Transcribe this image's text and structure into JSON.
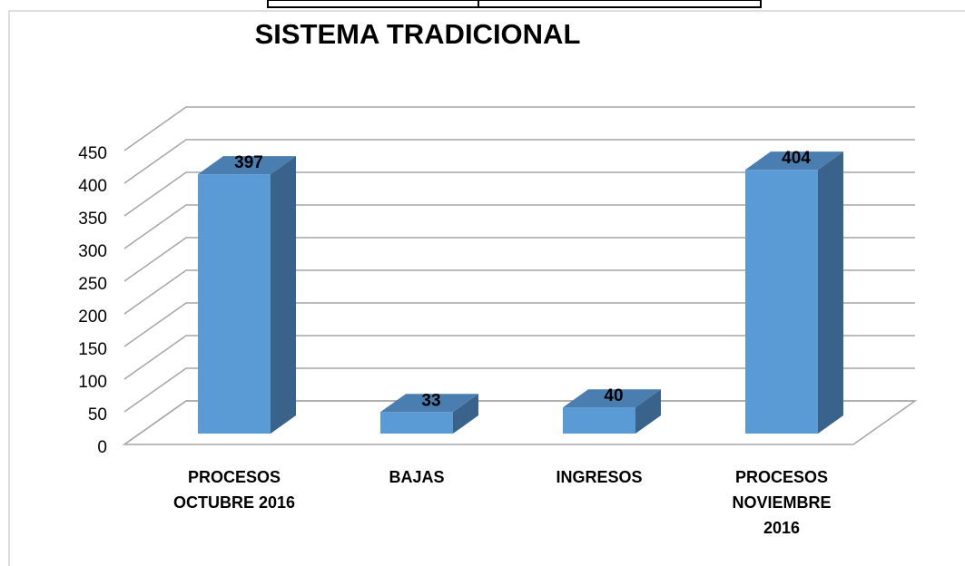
{
  "chart_data": {
    "type": "bar3d",
    "title": "SISTEMA TRADICIONAL",
    "categories": [
      "PROCESOS OCTUBRE 2016",
      "BAJAS",
      "INGRESOS",
      "PROCESOS NOVIEMBRE 2016"
    ],
    "values": [
      397,
      33,
      40,
      404
    ],
    "color": "#5b9bd5",
    "ylim": [
      0,
      450
    ],
    "yticks": [
      0,
      50,
      100,
      150,
      200,
      250,
      300,
      350,
      400,
      450
    ],
    "grid": true
  }
}
